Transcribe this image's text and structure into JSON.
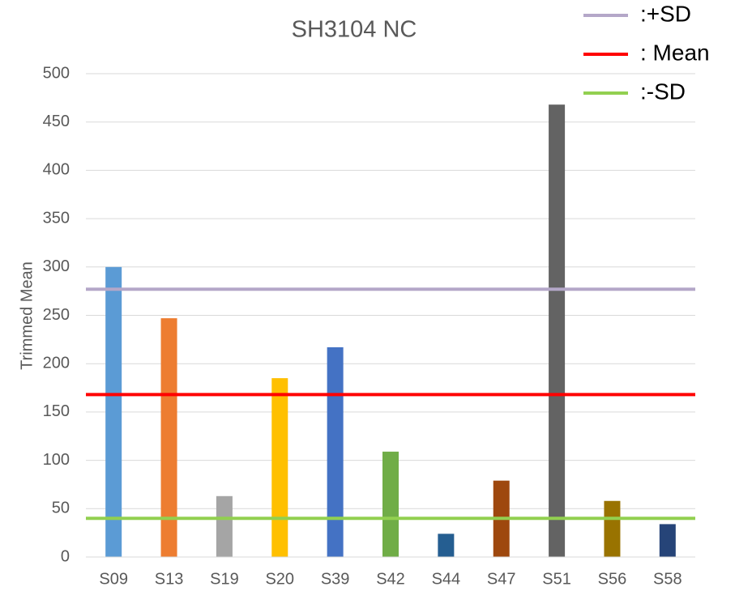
{
  "chart_data": {
    "type": "bar",
    "title": "SH3104 NC",
    "y_label": "Trimmed Mean",
    "categories": [
      "S09",
      "S13",
      "S19",
      "S20",
      "S39",
      "S42",
      "S44",
      "S47",
      "S51",
      "S56",
      "S58"
    ],
    "values": [
      300,
      247,
      63,
      185,
      217,
      109,
      24,
      79,
      468,
      58,
      34
    ],
    "colors": [
      "#5b9bd5",
      "#ed7d31",
      "#a5a5a5",
      "#ffc000",
      "#4472c4",
      "#70ad47",
      "#255e91",
      "#9e480e",
      "#636363",
      "#997300",
      "#264478"
    ],
    "ylim": [
      0,
      500
    ],
    "yticks": [
      0,
      50,
      100,
      150,
      200,
      250,
      300,
      350,
      400,
      450,
      500
    ],
    "grid": true,
    "legend_position": "top-right",
    "reference_lines": [
      {
        "name": ":+SD",
        "color": "#b4a7c8",
        "value": 277
      },
      {
        "name": ": Mean",
        "color": "#ff0000",
        "value": 168
      },
      {
        "name": ":-SD",
        "color": "#92d050",
        "value": 40
      }
    ]
  }
}
